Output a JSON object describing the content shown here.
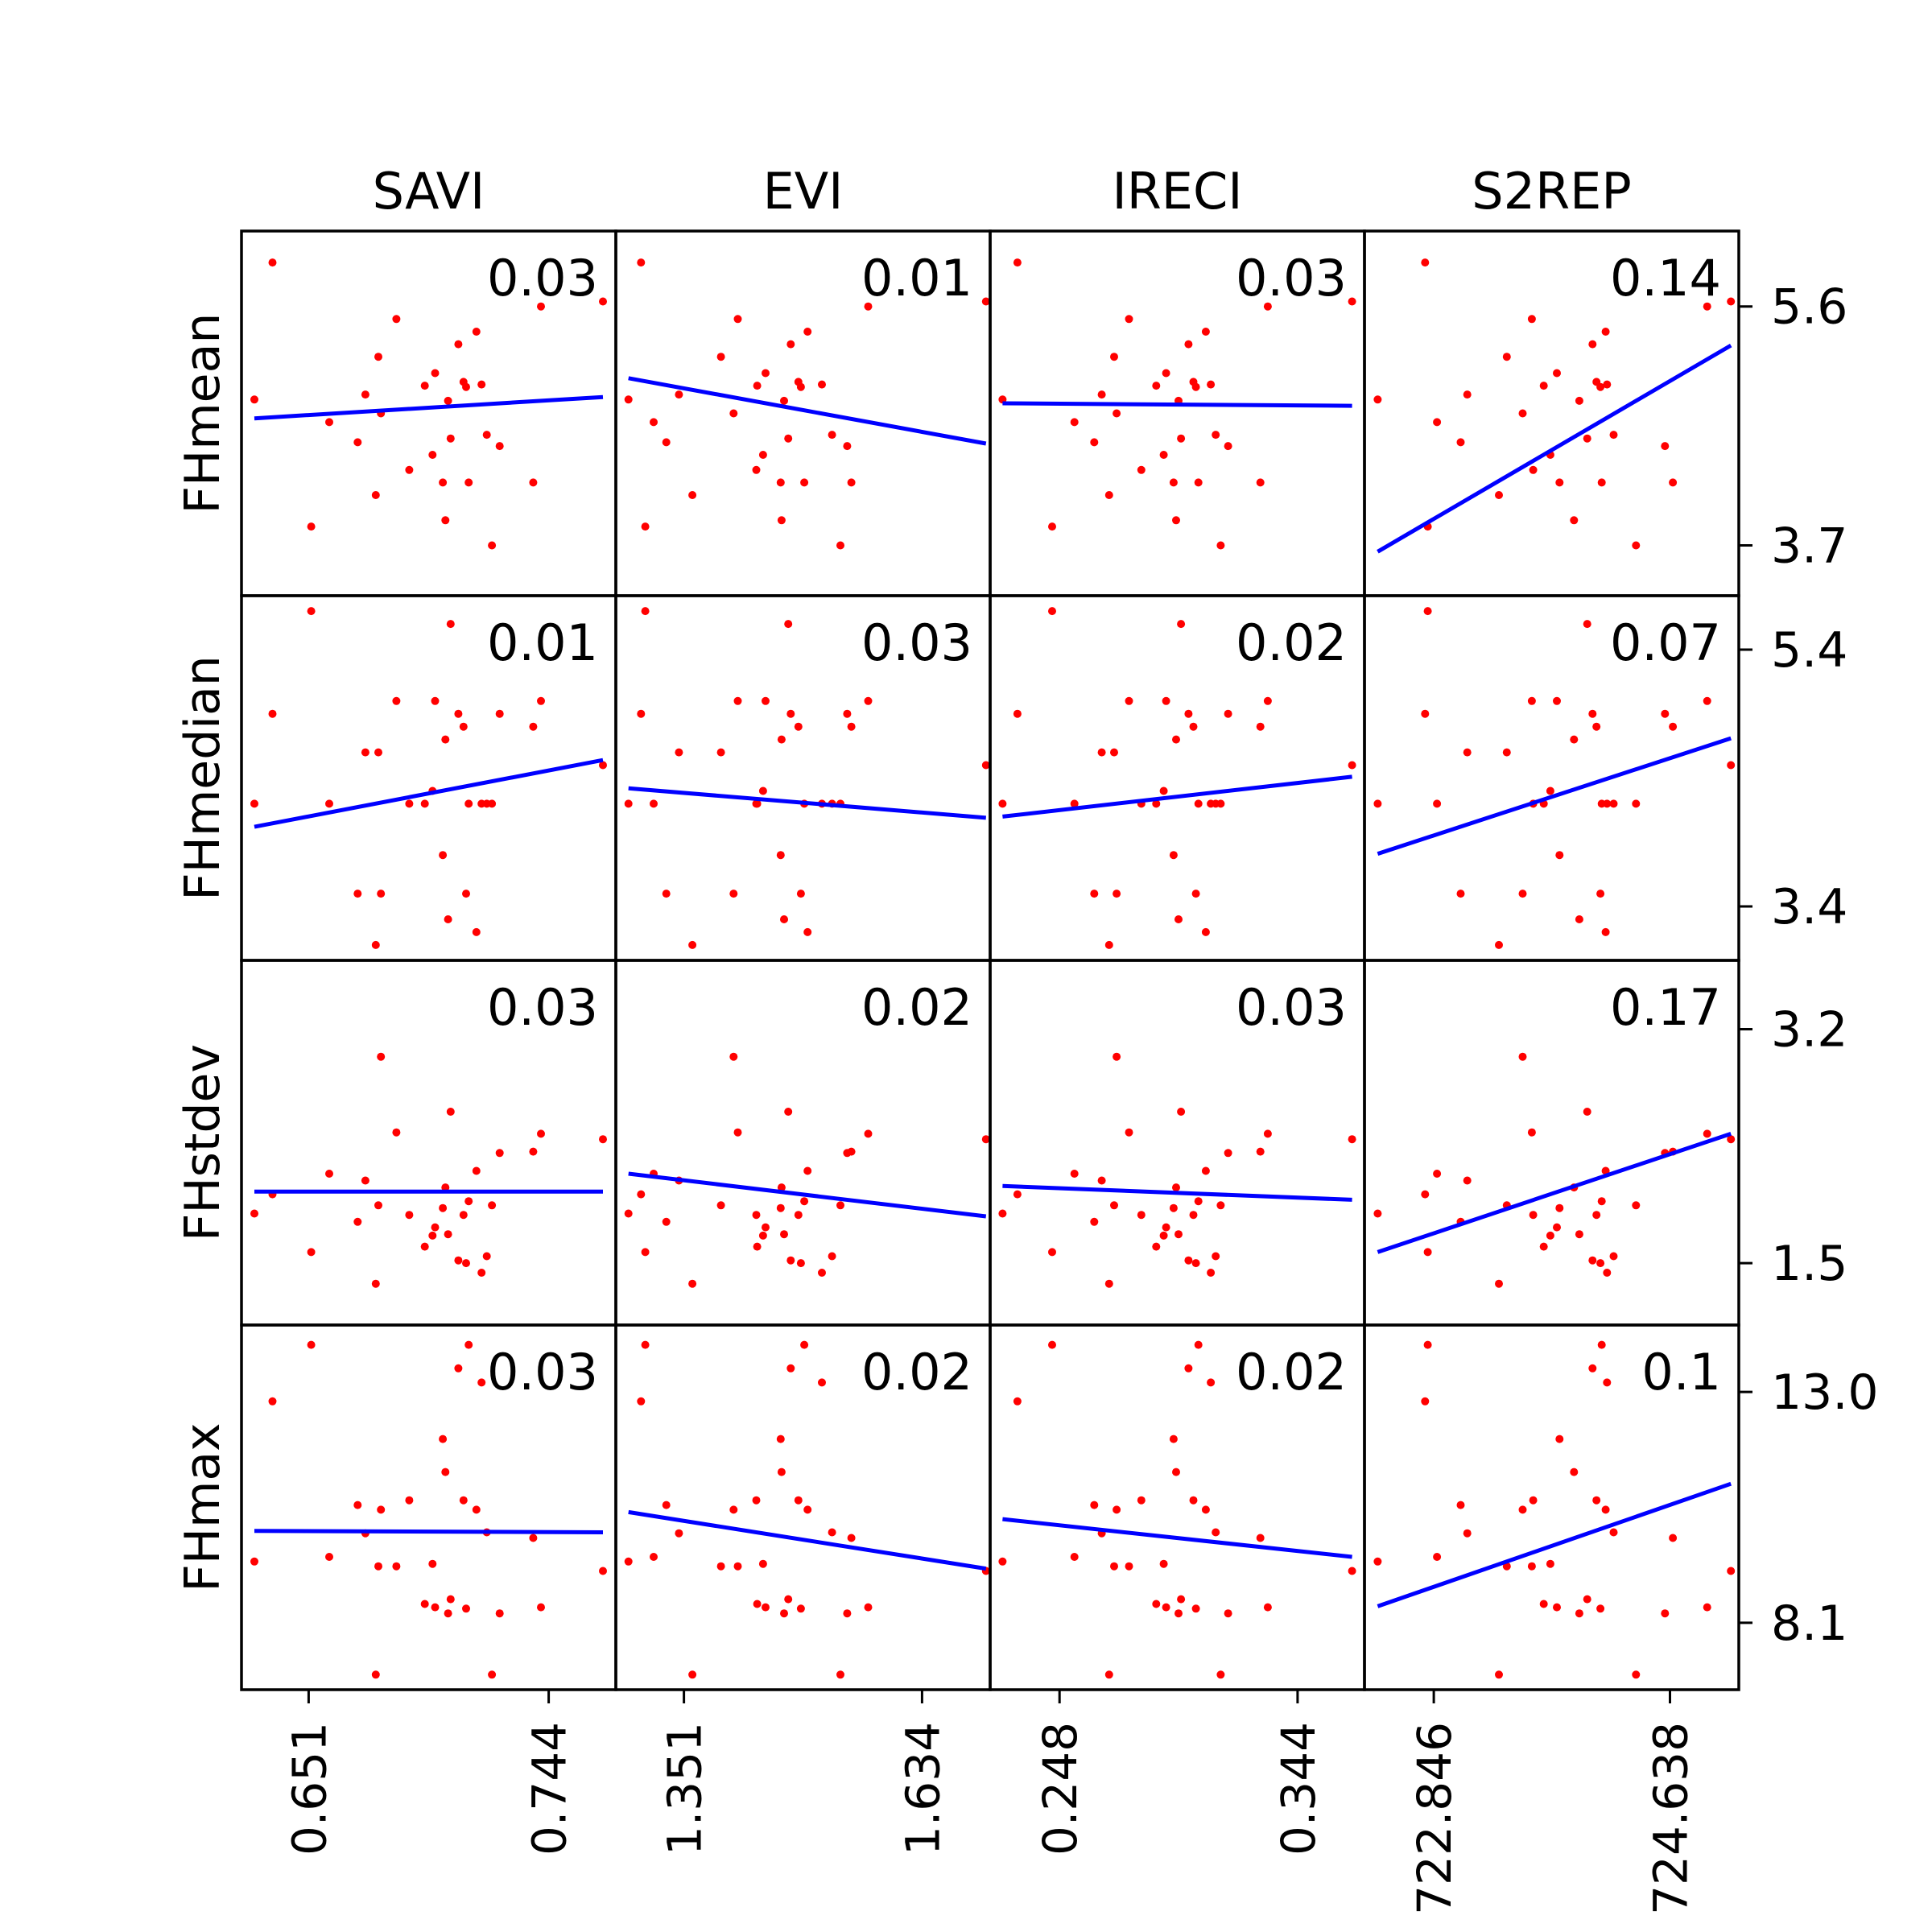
{
  "chart_data": {
    "type": "scatter",
    "point_color": "#ff0000",
    "fit_color": "#0000ff",
    "columns": [
      {
        "name": "SAVI",
        "xticks": [
          "0.651",
          "0.744"
        ],
        "xlim": [
          0.625,
          0.77
        ],
        "xtick_values": [
          0.651,
          0.744
        ]
      },
      {
        "name": "EVI",
        "xticks": [
          "1.351",
          "1.634"
        ],
        "xlim": [
          1.27,
          1.715
        ],
        "xtick_values": [
          1.351,
          1.634
        ]
      },
      {
        "name": "IRECI",
        "xticks": [
          "0.248",
          "0.344"
        ],
        "xlim": [
          0.22,
          0.371
        ],
        "xtick_values": [
          0.248,
          0.344
        ]
      },
      {
        "name": "S2REP",
        "xticks": [
          "722.846",
          "724.638"
        ],
        "xlim": [
          722.32,
          725.16
        ],
        "xtick_values": [
          722.846,
          724.638
        ]
      }
    ],
    "rows": [
      {
        "name": "FHmean",
        "yticks": [
          "5.6",
          "3.7"
        ],
        "ylim": [
          3.3,
          6.2
        ],
        "ytick_values": [
          5.6,
          3.7
        ]
      },
      {
        "name": "FHmedian",
        "yticks": [
          "5.4",
          "3.4"
        ],
        "ylim": [
          2.98,
          5.82
        ],
        "ytick_values": [
          5.4,
          3.4
        ]
      },
      {
        "name": "FHstdev",
        "yticks": [
          "3.2",
          "1.5"
        ],
        "ylim": [
          1.05,
          3.7
        ],
        "ytick_values": [
          3.2,
          1.5
        ]
      },
      {
        "name": "FHmax",
        "yticks": [
          "13.0",
          "8.1"
        ],
        "ylim": [
          6.68,
          14.42
        ],
        "ytick_values": [
          13.0,
          8.1
        ]
      }
    ],
    "r2": [
      [
        "0.03",
        "0.01",
        "0.03",
        "0.14"
      ],
      [
        "0.01",
        "0.03",
        "0.02",
        "0.07"
      ],
      [
        "0.03",
        "0.02",
        "0.03",
        "0.17"
      ],
      [
        "0.03",
        "0.02",
        "0.02",
        "0.1"
      ]
    ],
    "fits": [
      [
        [
          [
            0.63,
            4.71
          ],
          [
            0.765,
            4.88
          ]
        ],
        [
          [
            1.285,
            5.03
          ],
          [
            1.71,
            4.51
          ]
        ],
        [
          [
            0.225,
            4.83
          ],
          [
            0.366,
            4.81
          ]
        ],
        [
          [
            722.42,
            3.65
          ],
          [
            725.1,
            5.29
          ]
        ]
      ],
      [
        [
          [
            0.63,
            4.02
          ],
          [
            0.765,
            4.54
          ]
        ],
        [
          [
            1.285,
            4.32
          ],
          [
            1.71,
            4.09
          ]
        ],
        [
          [
            0.225,
            4.1
          ],
          [
            0.366,
            4.41
          ]
        ],
        [
          [
            722.42,
            3.81
          ],
          [
            725.1,
            4.71
          ]
        ]
      ],
      [
        [
          [
            0.63,
            2.02
          ],
          [
            0.765,
            2.02
          ]
        ],
        [
          [
            1.285,
            2.15
          ],
          [
            1.71,
            1.84
          ]
        ],
        [
          [
            0.225,
            2.06
          ],
          [
            0.366,
            1.96
          ]
        ],
        [
          [
            722.42,
            1.58
          ],
          [
            725.1,
            2.44
          ]
        ]
      ],
      [
        [
          [
            0.63,
            10.05
          ],
          [
            0.765,
            10.02
          ]
        ],
        [
          [
            1.285,
            10.45
          ],
          [
            1.71,
            9.25
          ]
        ],
        [
          [
            0.225,
            10.3
          ],
          [
            0.366,
            9.5
          ]
        ],
        [
          [
            722.42,
            8.45
          ],
          [
            725.1,
            11.05
          ]
        ]
      ]
    ],
    "samples": {
      "SAVI": [
        0.63,
        0.637,
        0.652,
        0.659,
        0.67,
        0.673,
        0.677,
        0.678,
        0.679,
        0.685,
        0.69,
        0.696,
        0.699,
        0.7,
        0.703,
        0.704,
        0.705,
        0.706,
        0.709,
        0.711,
        0.712,
        0.713,
        0.716,
        0.718,
        0.72,
        0.722,
        0.725,
        0.738,
        0.741,
        0.765
      ],
      "EVI": [
        1.285,
        1.3,
        1.305,
        1.315,
        1.33,
        1.345,
        1.361,
        1.395,
        1.41,
        1.415,
        1.437,
        1.438,
        1.445,
        1.448,
        1.466,
        1.467,
        1.47,
        1.475,
        1.478,
        1.487,
        1.49,
        1.494,
        1.498,
        1.515,
        1.527,
        1.537,
        1.545,
        1.55,
        1.57,
        1.71
      ],
      "IRECI": [
        0.225,
        0.231,
        0.245,
        0.254,
        0.262,
        0.265,
        0.268,
        0.27,
        0.271,
        0.276,
        0.281,
        0.287,
        0.29,
        0.291,
        0.294,
        0.295,
        0.296,
        0.297,
        0.3,
        0.302,
        0.303,
        0.304,
        0.307,
        0.309,
        0.311,
        0.313,
        0.316,
        0.329,
        0.332,
        0.366
      ],
      "S2REP": [
        722.42,
        722.78,
        722.8,
        722.87,
        723.05,
        723.1,
        723.34,
        723.4,
        723.52,
        723.59,
        723.6,
        723.68,
        723.73,
        723.78,
        723.8,
        723.91,
        723.95,
        724.01,
        724.05,
        724.08,
        724.11,
        724.12,
        724.15,
        724.16,
        724.21,
        724.38,
        724.6,
        724.66,
        724.92,
        725.1
      ],
      "FHmean": [
        4.86,
        5.95,
        3.85,
        4.68,
        4.52,
        4.9,
        4.1,
        5.2,
        4.75,
        5.5,
        4.3,
        4.97,
        4.42,
        5.07,
        4.2,
        3.9,
        4.85,
        4.55,
        5.3,
        5.0,
        4.96,
        4.2,
        5.4,
        4.98,
        4.58,
        3.7,
        4.49,
        4.2,
        5.6,
        5.64
      ],
      "FHmedian": [
        4.2,
        4.9,
        5.7,
        4.2,
        3.5,
        4.6,
        3.1,
        4.6,
        3.5,
        5.0,
        4.2,
        4.2,
        4.3,
        5.0,
        3.8,
        4.7,
        3.3,
        5.6,
        4.9,
        4.8,
        3.5,
        4.2,
        3.2,
        4.2,
        4.2,
        4.2,
        4.9,
        4.8,
        5.0,
        4.5
      ],
      "FHstdev": [
        1.86,
        2.0,
        1.58,
        2.15,
        1.8,
        2.1,
        1.35,
        1.92,
        3.0,
        2.45,
        1.85,
        1.62,
        1.7,
        1.76,
        1.9,
        2.05,
        1.71,
        2.6,
        1.52,
        1.85,
        1.5,
        1.95,
        2.17,
        1.43,
        1.55,
        1.92,
        2.3,
        2.31,
        2.44,
        2.4
      ],
      "FHmax": [
        9.4,
        12.8,
        14.0,
        9.5,
        10.6,
        10.0,
        7.0,
        9.3,
        10.5,
        9.3,
        10.7,
        8.5,
        9.35,
        8.43,
        12.0,
        11.3,
        8.3,
        8.6,
        13.5,
        10.7,
        8.4,
        14.0,
        10.5,
        13.2,
        10.02,
        7.0,
        8.3,
        9.9,
        8.43,
        9.2
      ]
    }
  }
}
